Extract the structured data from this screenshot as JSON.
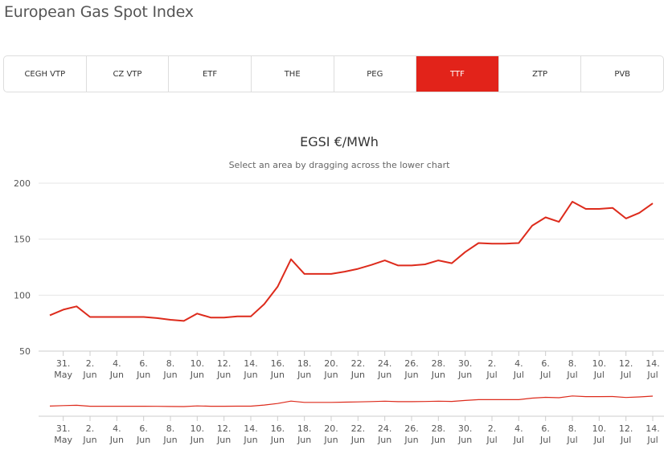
{
  "page": {
    "title": "European Gas Spot Index"
  },
  "tabs": [
    {
      "label": "CEGH VTP",
      "active": false
    },
    {
      "label": "CZ VTP",
      "active": false
    },
    {
      "label": "ETF",
      "active": false
    },
    {
      "label": "THE",
      "active": false
    },
    {
      "label": "PEG",
      "active": false
    },
    {
      "label": "TTF",
      "active": true
    },
    {
      "label": "ZTP",
      "active": false
    },
    {
      "label": "PVB",
      "active": false
    }
  ],
  "colors": {
    "accent": "#e2231a",
    "line": "#dd2b1c",
    "grid": "#e6e6e6",
    "tab_border": "#dddddd"
  },
  "chart_data": {
    "type": "line",
    "title": "EGSI €/MWh",
    "subtitle": "Select an area by dragging across the lower chart",
    "ylim": [
      50,
      200
    ],
    "yticks": [
      50,
      100,
      150,
      200
    ],
    "grid": true,
    "xticks": [
      {
        "l1": "31.",
        "l2": "May"
      },
      {
        "l1": "2.",
        "l2": "Jun"
      },
      {
        "l1": "4.",
        "l2": "Jun"
      },
      {
        "l1": "6.",
        "l2": "Jun"
      },
      {
        "l1": "8.",
        "l2": "Jun"
      },
      {
        "l1": "10.",
        "l2": "Jun"
      },
      {
        "l1": "12.",
        "l2": "Jun"
      },
      {
        "l1": "14.",
        "l2": "Jun"
      },
      {
        "l1": "16.",
        "l2": "Jun"
      },
      {
        "l1": "18.",
        "l2": "Jun"
      },
      {
        "l1": "20.",
        "l2": "Jun"
      },
      {
        "l1": "22.",
        "l2": "Jun"
      },
      {
        "l1": "24.",
        "l2": "Jun"
      },
      {
        "l1": "26.",
        "l2": "Jun"
      },
      {
        "l1": "28.",
        "l2": "Jun"
      },
      {
        "l1": "30.",
        "l2": "Jun"
      },
      {
        "l1": "2.",
        "l2": "Jul"
      },
      {
        "l1": "4.",
        "l2": "Jul"
      },
      {
        "l1": "6.",
        "l2": "Jul"
      },
      {
        "l1": "8.",
        "l2": "Jul"
      },
      {
        "l1": "10.",
        "l2": "Jul"
      },
      {
        "l1": "12.",
        "l2": "Jul"
      },
      {
        "l1": "14.",
        "l2": "Jul"
      }
    ],
    "series": [
      {
        "dates": [
          "2022-05-30",
          "2022-05-31",
          "2022-06-01",
          "2022-06-02",
          "2022-06-03",
          "2022-06-04",
          "2022-06-05",
          "2022-06-06",
          "2022-06-07",
          "2022-06-08",
          "2022-06-09",
          "2022-06-10",
          "2022-06-11",
          "2022-06-12",
          "2022-06-13",
          "2022-06-14",
          "2022-06-15",
          "2022-06-16",
          "2022-06-17",
          "2022-06-18",
          "2022-06-19",
          "2022-06-20",
          "2022-06-21",
          "2022-06-22",
          "2022-06-23",
          "2022-06-24",
          "2022-06-25",
          "2022-06-26",
          "2022-06-27",
          "2022-06-28",
          "2022-06-29",
          "2022-06-30",
          "2022-07-01",
          "2022-07-02",
          "2022-07-03",
          "2022-07-04",
          "2022-07-05",
          "2022-07-06",
          "2022-07-07",
          "2022-07-08",
          "2022-07-09",
          "2022-07-10",
          "2022-07-11",
          "2022-07-12",
          "2022-07-13",
          "2022-07-14"
        ],
        "values": [
          82,
          87,
          90,
          80.5,
          80.5,
          80.5,
          80.5,
          80.5,
          79.5,
          78,
          77,
          83.5,
          80,
          80,
          81,
          81,
          92,
          107.5,
          132,
          119,
          119,
          119,
          121,
          123.5,
          127,
          131,
          126.5,
          126.5,
          127.5,
          131,
          128.5,
          138.5,
          146.5,
          146,
          146,
          146.5,
          162,
          169.5,
          165.5,
          183.5,
          177,
          177,
          178,
          168.5,
          173.5,
          182
        ]
      }
    ]
  }
}
